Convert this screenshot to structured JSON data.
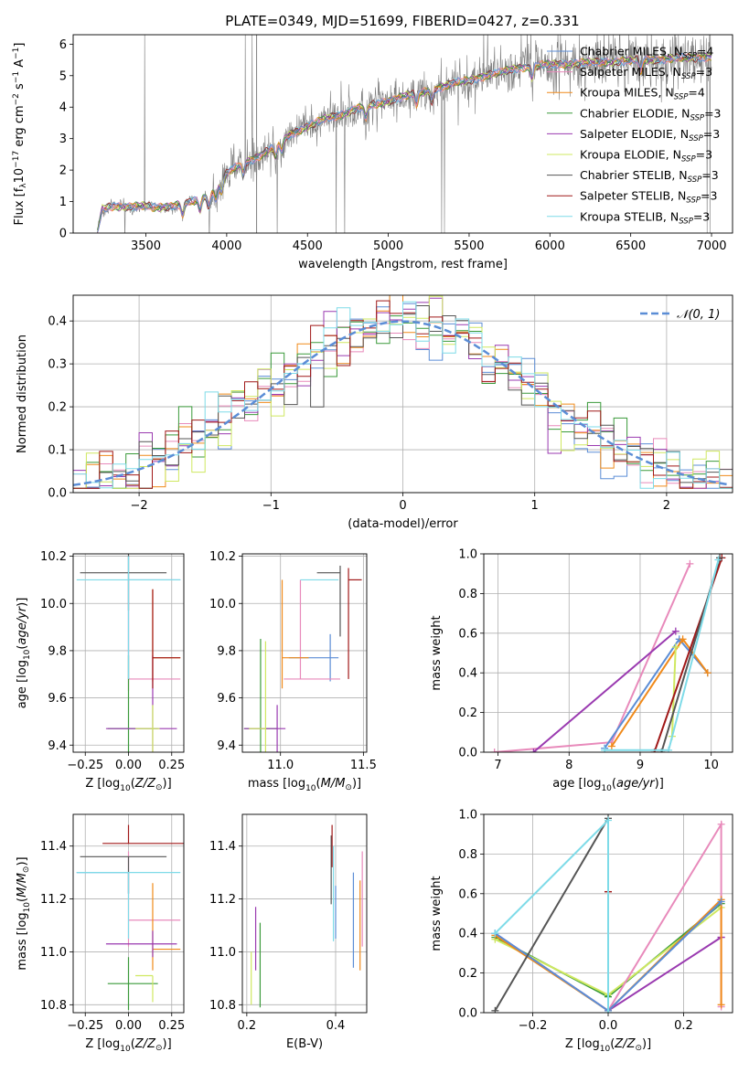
{
  "figure": {
    "title_text": "PLATE=0349, MJD=51699, FIBERID=0427, z=0.331"
  },
  "colors": {
    "Chabrier MILES": "#5b8dd6",
    "Salpeter MILES": "#e88abb",
    "Kroupa MILES": "#f08a1a",
    "Chabrier ELODIE": "#3a9a3a",
    "Salpeter ELODIE": "#9a3ab0",
    "Kroupa ELODIE": "#cfe860",
    "Chabrier STELIB": "#555555",
    "Salpeter STELIB": "#a01818",
    "Kroupa STELIB": "#7edbe8",
    "data": "#808080",
    "normal": "#5b8dd6"
  },
  "chart_data": [
    {
      "id": "spectrum",
      "type": "line",
      "title": "PLATE=0349, MJD=51699, FIBERID=0427, z=0.331",
      "xlabel": "wavelength [Angstrom, rest frame]",
      "ylabel": "Flux [f_λ 10^-17 erg cm^-2 s^-1 A^-1]",
      "xlim": [
        3050,
        7130
      ],
      "ylim": [
        0,
        6.3
      ],
      "xticks": [
        3500,
        4000,
        4500,
        5000,
        5500,
        6000,
        6500,
        7000
      ],
      "yticks": [
        0,
        1,
        2,
        3,
        4,
        5,
        6
      ],
      "grid": false,
      "legend_position": "top-right",
      "legend": [
        {
          "name": "Chabrier MILES",
          "nssp": "4"
        },
        {
          "name": "Salpeter MILES",
          "nssp": "3"
        },
        {
          "name": "Kroupa MILES",
          "nssp": "4"
        },
        {
          "name": "Chabrier ELODIE",
          "nssp": "3"
        },
        {
          "name": "Salpeter ELODIE",
          "nssp": "3"
        },
        {
          "name": "Kroupa ELODIE",
          "nssp": "3"
        },
        {
          "name": "Chabrier STELIB",
          "nssp": "3"
        },
        {
          "name": "Salpeter STELIB",
          "nssp": "3"
        },
        {
          "name": "Kroupa STELIB",
          "nssp": "3"
        }
      ],
      "continuum": {
        "x": [
          3200,
          3230,
          3300,
          3500,
          3550,
          3700,
          3800,
          3900,
          3950,
          4000,
          4100,
          4200,
          4300,
          4400,
          4500,
          4600,
          4700,
          4800,
          4900,
          5000,
          5100,
          5200,
          5300,
          5400,
          5500,
          5600,
          5700,
          5800,
          5900,
          6000,
          6200,
          6400,
          6600,
          6800,
          7000
        ],
        "y": [
          0.0,
          0.75,
          0.85,
          0.85,
          0.8,
          0.9,
          1.0,
          1.25,
          1.5,
          1.9,
          2.2,
          2.45,
          2.75,
          3.15,
          3.4,
          3.6,
          3.75,
          3.95,
          4.05,
          4.2,
          4.35,
          4.45,
          4.6,
          4.75,
          4.85,
          5.0,
          5.1,
          5.25,
          5.3,
          5.35,
          5.4,
          5.45,
          5.5,
          5.55,
          5.6
        ]
      }
    },
    {
      "id": "residuals",
      "type": "bar",
      "xlabel": "(data-model)/error",
      "ylabel": "Normed distribution",
      "xlim": [
        -2.5,
        2.5
      ],
      "ylim": [
        0,
        0.46
      ],
      "xticks": [
        -2,
        -1,
        0,
        1,
        2
      ],
      "yticks": [
        0.0,
        0.1,
        0.2,
        0.3,
        0.4
      ],
      "grid": true,
      "legend_position": "top-right",
      "legend": "𝒩(0, 1)",
      "bin_width": 0.1,
      "normal": {
        "mean": 0,
        "sigma": 1
      }
    },
    {
      "id": "age_vs_Z",
      "type": "scatter",
      "xlabel": "Z [log10(Z/Z⊙)]",
      "ylabel": "age [log10(age/yr)]",
      "xlim": [
        -0.32,
        0.32
      ],
      "ylim": [
        9.37,
        10.21
      ],
      "xticks": [
        -0.25,
        0.0,
        0.25
      ],
      "yticks": [
        9.4,
        9.6,
        9.8,
        10.0,
        10.2
      ],
      "grid": true,
      "points": [
        {
          "series": "Chabrier MILES",
          "x": 0.0,
          "y": 10.1,
          "xerr": [
            0.0,
            0.3
          ],
          "yerr": [
            0.42,
            0.1
          ]
        },
        {
          "series": "Salpeter MILES",
          "x": 0.0,
          "y": 9.68,
          "xerr": [
            0.0,
            0.3
          ],
          "yerr": [
            0.05,
            0.42
          ]
        },
        {
          "series": "Kroupa MILES",
          "x": 0.14,
          "y": 9.77,
          "xerr": [
            0.0,
            0.16
          ],
          "yerr": [
            0.1,
            0.29
          ]
        },
        {
          "series": "Chabrier ELODIE",
          "x": 0.0,
          "y": 9.47,
          "xerr": [
            0.12,
            0.17
          ],
          "yerr": [
            0.1,
            0.31
          ]
        },
        {
          "series": "Salpeter ELODIE",
          "x": 0.14,
          "y": 9.47,
          "xerr": [
            0.27,
            0.14
          ],
          "yerr": [
            0.1,
            0.31
          ]
        },
        {
          "series": "Kroupa ELODIE",
          "x": 0.14,
          "y": 9.47,
          "xerr": [
            0.1,
            0.04
          ],
          "yerr": [
            0.1,
            0.1
          ]
        },
        {
          "series": "Chabrier STELIB",
          "x": 0.0,
          "y": 10.13,
          "xerr": [
            0.28,
            0.22
          ],
          "yerr": [
            0.16,
            0.1
          ]
        },
        {
          "series": "Salpeter STELIB",
          "x": 0.14,
          "y": 9.77,
          "xerr": [
            0.0,
            0.16
          ],
          "yerr": [
            0.13,
            0.29
          ]
        },
        {
          "series": "Kroupa STELIB",
          "x": 0.0,
          "y": 10.1,
          "xerr": [
            0.3,
            0.3
          ],
          "yerr": [
            0.42,
            0.1
          ]
        }
      ]
    },
    {
      "id": "age_vs_mass",
      "type": "scatter",
      "xlabel": "mass [log10(M/M⊙)]",
      "ylabel": "",
      "xlim": [
        10.77,
        11.52
      ],
      "ylim": [
        9.37,
        10.21
      ],
      "xticks": [
        11.0,
        11.5
      ],
      "yticks": [
        9.4,
        9.6,
        9.8,
        10.0,
        10.2
      ],
      "grid": true,
      "points": [
        {
          "series": "Chabrier MILES",
          "x": 11.3,
          "y": 9.77,
          "xerr": [
            0.25,
            0.05
          ],
          "yerr": [
            0.1,
            0.1
          ]
        },
        {
          "series": "Salpeter MILES",
          "x": 11.12,
          "y": 9.68,
          "xerr": [
            0.1,
            0.24
          ],
          "yerr": [
            0.0,
            0.42
          ]
        },
        {
          "series": "Kroupa MILES",
          "x": 11.01,
          "y": 9.77,
          "xerr": [
            0.0,
            0.16
          ],
          "yerr": [
            0.13,
            0.33
          ]
        },
        {
          "series": "Chabrier ELODIE",
          "x": 10.88,
          "y": 9.47,
          "xerr": [
            0.1,
            0.1
          ],
          "yerr": [
            0.1,
            0.38
          ]
        },
        {
          "series": "Salpeter ELODIE",
          "x": 10.98,
          "y": 9.47,
          "xerr": [
            0.2,
            0.05
          ],
          "yerr": [
            0.1,
            0.1
          ]
        },
        {
          "series": "Kroupa ELODIE",
          "x": 10.91,
          "y": 9.47,
          "xerr": [
            0.1,
            0.0
          ],
          "yerr": [
            0.1,
            0.37
          ]
        },
        {
          "series": "Chabrier STELIB",
          "x": 11.36,
          "y": 10.13,
          "xerr": [
            0.14,
            0.0
          ],
          "yerr": [
            0.27,
            0.03
          ]
        },
        {
          "series": "Salpeter STELIB",
          "x": 11.41,
          "y": 10.1,
          "xerr": [
            0.0,
            0.08
          ],
          "yerr": [
            0.42,
            0.05
          ]
        },
        {
          "series": "Kroupa STELIB",
          "x": 11.3,
          "y": 10.1,
          "xerr": [
            0.18,
            0.05
          ],
          "yerr": [
            0.0,
            0.0
          ]
        }
      ]
    },
    {
      "id": "weight_vs_age",
      "type": "line",
      "xlabel": "age [log10(age/yr)]",
      "ylabel": "mass weight",
      "xlim": [
        6.8,
        10.3
      ],
      "ylim": [
        0,
        1.0
      ],
      "xticks": [
        7,
        8,
        9,
        10
      ],
      "yticks": [
        0.0,
        0.2,
        0.4,
        0.6,
        0.8,
        1.0
      ],
      "grid": true,
      "series": [
        {
          "name": "Salpeter MILES",
          "x": [
            6.95,
            8.6,
            9.7
          ],
          "y": [
            0.0,
            0.05,
            0.95
          ]
        },
        {
          "name": "Salpeter ELODIE",
          "x": [
            7.5,
            9.5
          ],
          "y": [
            0.0,
            0.61
          ]
        },
        {
          "name": "Chabrier MILES",
          "x": [
            8.5,
            9.55,
            9.95
          ],
          "y": [
            0.02,
            0.57,
            0.4
          ]
        },
        {
          "name": "Kroupa MILES",
          "x": [
            8.6,
            9.6,
            9.95
          ],
          "y": [
            0.03,
            0.57,
            0.4
          ]
        },
        {
          "name": "Kroupa ELODIE",
          "x": [
            9.45,
            9.5
          ],
          "y": [
            0.08,
            0.53
          ]
        },
        {
          "name": "Salpeter STELIB",
          "x": [
            9.2,
            10.15
          ],
          "y": [
            0.0,
            0.98
          ]
        },
        {
          "name": "Chabrier STELIB",
          "x": [
            9.3,
            10.12
          ],
          "y": [
            0.0,
            0.98
          ]
        },
        {
          "name": "Kroupa STELIB",
          "x": [
            8.5,
            9.4,
            10.1
          ],
          "y": [
            0.01,
            0.01,
            0.97
          ]
        }
      ]
    },
    {
      "id": "mass_vs_Z",
      "type": "scatter",
      "xlabel": "Z [log10(Z/Z⊙)]",
      "ylabel": "mass [log10(M/M⊙)]",
      "xlim": [
        -0.32,
        0.32
      ],
      "ylim": [
        10.77,
        11.52
      ],
      "xticks": [
        -0.25,
        0.0,
        0.25
      ],
      "yticks": [
        10.8,
        11.0,
        11.2,
        11.4
      ],
      "grid": true,
      "points": [
        {
          "series": "Chabrier MILES",
          "x": 0.0,
          "y": 11.3,
          "xerr": [
            0.3,
            0.0
          ],
          "yerr": [
            0.08,
            0.0
          ]
        },
        {
          "series": "Salpeter MILES",
          "x": 0.0,
          "y": 11.12,
          "xerr": [
            0.0,
            0.3
          ],
          "yerr": [
            0.1,
            0.26
          ]
        },
        {
          "series": "Kroupa MILES",
          "x": 0.14,
          "y": 11.01,
          "xerr": [
            0.0,
            0.16
          ],
          "yerr": [
            0.08,
            0.25
          ]
        },
        {
          "series": "Chabrier ELODIE",
          "x": 0.0,
          "y": 10.88,
          "xerr": [
            0.12,
            0.17
          ],
          "yerr": [
            0.1,
            0.1
          ]
        },
        {
          "series": "Salpeter ELODIE",
          "x": 0.14,
          "y": 11.03,
          "xerr": [
            0.27,
            0.14
          ],
          "yerr": [
            0.05,
            0.05
          ]
        },
        {
          "series": "Kroupa ELODIE",
          "x": 0.14,
          "y": 10.91,
          "xerr": [
            0.1,
            0.0
          ],
          "yerr": [
            0.1,
            0.0
          ]
        },
        {
          "series": "Chabrier STELIB",
          "x": 0.0,
          "y": 11.36,
          "xerr": [
            0.28,
            0.22
          ],
          "yerr": [
            0.14,
            0.0
          ]
        },
        {
          "series": "Salpeter STELIB",
          "x": 0.0,
          "y": 11.41,
          "xerr": [
            0.15,
            0.4
          ],
          "yerr": [
            0.0,
            0.07
          ]
        },
        {
          "series": "Kroupa STELIB",
          "x": 0.0,
          "y": 11.3,
          "xerr": [
            0.3,
            0.3
          ],
          "yerr": [
            0.25,
            0.0
          ]
        }
      ]
    },
    {
      "id": "mass_vs_ebv",
      "type": "scatter",
      "xlabel": "E(B-V)",
      "ylabel": "",
      "xlim": [
        0.19,
        0.47
      ],
      "ylim": [
        10.77,
        11.52
      ],
      "xticks": [
        0.2,
        0.4
      ],
      "yticks": [
        10.8,
        11.0,
        11.2,
        11.4
      ],
      "grid": true,
      "points": [
        {
          "series": "Kroupa ELODIE",
          "x": 0.21,
          "y": 10.9,
          "xerr": [
            0,
            0
          ],
          "yerr": [
            0.1,
            0.1
          ]
        },
        {
          "series": "Salpeter ELODIE",
          "x": 0.22,
          "y": 11.05,
          "xerr": [
            0,
            0
          ],
          "yerr": [
            0.12,
            0.12
          ]
        },
        {
          "series": "Chabrier ELODIE",
          "x": 0.23,
          "y": 10.95,
          "xerr": [
            0,
            0
          ],
          "yerr": [
            0.16,
            0.16
          ]
        },
        {
          "series": "Chabrier STELIB",
          "x": 0.39,
          "y": 11.3,
          "xerr": [
            0,
            0
          ],
          "yerr": [
            0.12,
            0.14
          ]
        },
        {
          "series": "Salpeter STELIB",
          "x": 0.392,
          "y": 11.4,
          "xerr": [
            0,
            0
          ],
          "yerr": [
            0.08,
            0.08
          ]
        },
        {
          "series": "Kroupa STELIB",
          "x": 0.395,
          "y": 11.22,
          "xerr": [
            0,
            0
          ],
          "yerr": [
            0.18,
            0.18
          ]
        },
        {
          "series": "Chabrier MILES",
          "x": 0.4,
          "y": 11.15,
          "xerr": [
            0,
            0
          ],
          "yerr": [
            0.1,
            0.1
          ]
        },
        {
          "series": "Chabrier MILES",
          "x": 0.44,
          "y": 11.12,
          "xerr": [
            0,
            0
          ],
          "yerr": [
            0.18,
            0.18
          ]
        },
        {
          "series": "Kroupa MILES",
          "x": 0.455,
          "y": 11.1,
          "xerr": [
            0,
            0
          ],
          "yerr": [
            0.17,
            0.17
          ]
        },
        {
          "series": "Salpeter MILES",
          "x": 0.46,
          "y": 11.2,
          "xerr": [
            0,
            0
          ],
          "yerr": [
            0.18,
            0.18
          ]
        }
      ]
    },
    {
      "id": "weight_vs_Z",
      "type": "line",
      "xlabel": "Z [log10(Z/Z⊙)]",
      "ylabel": "mass weight",
      "xlim": [
        -0.33,
        0.33
      ],
      "ylim": [
        0,
        1.0
      ],
      "xticks": [
        -0.2,
        0.0,
        0.2
      ],
      "yticks": [
        0.0,
        0.2,
        0.4,
        0.6,
        0.8,
        1.0
      ],
      "grid": true,
      "series": [
        {
          "name": "Chabrier ELODIE",
          "x": [
            -0.3,
            0.0,
            0.3
          ],
          "y": [
            0.38,
            0.08,
            0.55
          ]
        },
        {
          "name": "Kroupa ELODIE",
          "x": [
            -0.3,
            0.0,
            0.3
          ],
          "y": [
            0.37,
            0.09,
            0.53
          ]
        },
        {
          "name": "Salpeter ELODIE",
          "x": [
            -0.3,
            0.0,
            0.3,
            0.3
          ],
          "y": [
            0.4,
            0.01,
            0.38,
            0.38
          ]
        },
        {
          "name": "Salpeter MILES",
          "x": [
            0.0,
            0.3,
            0.3
          ],
          "y": [
            0.01,
            0.95,
            0.03
          ]
        },
        {
          "name": "Kroupa MILES",
          "x": [
            -0.3,
            0.0,
            0.3,
            0.3
          ],
          "y": [
            0.39,
            0.01,
            0.57,
            0.04
          ]
        },
        {
          "name": "Chabrier MILES",
          "x": [
            -0.3,
            0.0,
            0.3
          ],
          "y": [
            0.4,
            0.01,
            0.56
          ]
        },
        {
          "name": "Chabrier STELIB",
          "x": [
            -0.3,
            0.0
          ],
          "y": [
            0.01,
            0.98
          ]
        },
        {
          "name": "Salpeter STELIB",
          "x": [
            0.0,
            0.0
          ],
          "y": [
            0.61,
            0.61
          ]
        },
        {
          "name": "Kroupa STELIB",
          "x": [
            -0.3,
            0.0,
            0.0
          ],
          "y": [
            0.4,
            0.97,
            0.0
          ]
        }
      ]
    }
  ]
}
